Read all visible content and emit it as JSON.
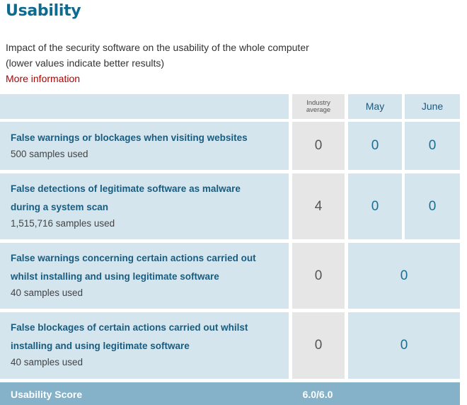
{
  "page": {
    "title": "Usability",
    "description_line1": "Impact of the security software on the usability of the whole computer",
    "description_line2": "(lower values indicate better results)",
    "more_info_link": "More information"
  },
  "table": {
    "headers": {
      "industry_line1": "Industry",
      "industry_line2": "average",
      "may": "May",
      "june": "June"
    },
    "rows": [
      {
        "title_line1": "False warnings or blockages when visiting websites",
        "title_line2": "",
        "samples": "500 samples used",
        "industry": "0",
        "may": "0",
        "june": "0"
      },
      {
        "title_line1": "False detections of legitimate software as malware",
        "title_line2": "during a system scan",
        "samples": "1,515,716 samples used",
        "industry": "4",
        "may": "0",
        "june": "0"
      },
      {
        "title_line1": "False warnings concerning certain actions carried out",
        "title_line2": "whilst installing and using legitimate software",
        "samples": "40 samples used",
        "industry": "0",
        "combined": "0"
      },
      {
        "title_line1": "False blockages of certain actions carried out whilst",
        "title_line2": "installing and using legitimate software",
        "samples": "40 samples used",
        "industry": "0",
        "combined": "0"
      }
    ],
    "score": {
      "label": "Usability Score",
      "value": "6.0/6.0"
    }
  }
}
